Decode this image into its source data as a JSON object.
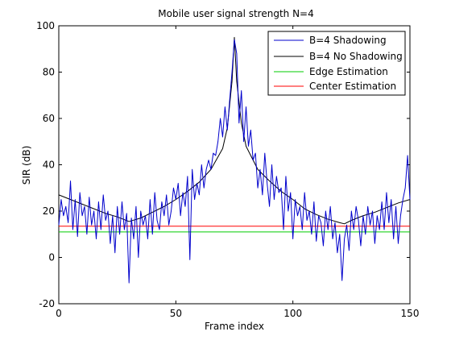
{
  "chart_data": {
    "type": "line",
    "title": "Mobile user signal strength N=4",
    "xlabel": "Frame index",
    "ylabel": "SIR (dB)",
    "xlim": [
      0,
      150
    ],
    "ylim": [
      -20,
      100
    ],
    "xticks": [
      0,
      50,
      100,
      150
    ],
    "yticks": [
      -20,
      0,
      20,
      40,
      60,
      80,
      100
    ],
    "grid": false,
    "legend_position": "top-right",
    "series": [
      {
        "name": "B=4 Shadowing",
        "color": "#0000cc",
        "x": [
          0,
          1,
          2,
          3,
          4,
          5,
          6,
          7,
          8,
          9,
          10,
          11,
          12,
          13,
          14,
          15,
          16,
          17,
          18,
          19,
          20,
          21,
          22,
          23,
          24,
          25,
          26,
          27,
          28,
          29,
          30,
          31,
          32,
          33,
          34,
          35,
          36,
          37,
          38,
          39,
          40,
          41,
          42,
          43,
          44,
          45,
          46,
          47,
          48,
          49,
          50,
          51,
          52,
          53,
          54,
          55,
          56,
          57,
          58,
          59,
          60,
          61,
          62,
          63,
          64,
          65,
          66,
          67,
          68,
          69,
          70,
          71,
          72,
          73,
          74,
          75,
          76,
          77,
          78,
          79,
          80,
          81,
          82,
          83,
          84,
          85,
          86,
          87,
          88,
          89,
          90,
          91,
          92,
          93,
          94,
          95,
          96,
          97,
          98,
          99,
          100,
          101,
          102,
          103,
          104,
          105,
          106,
          107,
          108,
          109,
          110,
          111,
          112,
          113,
          114,
          115,
          116,
          117,
          118,
          119,
          120,
          121,
          122,
          123,
          124,
          125,
          126,
          127,
          128,
          129,
          130,
          131,
          132,
          133,
          134,
          135,
          136,
          137,
          138,
          139,
          140,
          141,
          142,
          143,
          144,
          145,
          146,
          147,
          148,
          149,
          150
        ],
        "values": [
          14,
          25,
          18,
          22,
          15,
          33,
          12,
          25,
          9,
          28,
          18,
          22,
          10,
          26,
          14,
          20,
          8,
          24,
          12,
          27,
          16,
          20,
          6,
          18,
          2,
          22,
          10,
          24,
          12,
          19,
          -11,
          17,
          8,
          22,
          0,
          20,
          14,
          18,
          8,
          25,
          10,
          28,
          16,
          12,
          24,
          18,
          27,
          14,
          20,
          30,
          25,
          32,
          18,
          28,
          22,
          35,
          -1,
          38,
          25,
          32,
          27,
          40,
          30,
          38,
          42,
          38,
          45,
          44,
          50,
          60,
          52,
          65,
          55,
          68,
          80,
          94,
          88,
          58,
          72,
          50,
          65,
          48,
          55,
          42,
          45,
          30,
          38,
          27,
          45,
          32,
          22,
          40,
          25,
          35,
          28,
          30,
          12,
          35,
          20,
          28,
          8,
          25,
          18,
          22,
          12,
          28,
          16,
          20,
          10,
          24,
          7,
          18,
          15,
          5,
          20,
          12,
          22,
          8,
          15,
          2,
          10,
          -10,
          8,
          14,
          3,
          20,
          12,
          22,
          16,
          5,
          18,
          10,
          22,
          14,
          20,
          6,
          18,
          12,
          24,
          12,
          28,
          15,
          25,
          8,
          22,
          6,
          18,
          25,
          30,
          44,
          25
        ]
      },
      {
        "name": "B=4 No Shadowing",
        "color": "#000000",
        "x": [
          0,
          5,
          10,
          15,
          20,
          25,
          30,
          35,
          40,
          45,
          50,
          55,
          60,
          65,
          70,
          72,
          74,
          75,
          76,
          78,
          80,
          85,
          90,
          95,
          100,
          105,
          110,
          115,
          120,
          122,
          125,
          130,
          135,
          140,
          145,
          150
        ],
        "values": [
          27,
          25,
          23,
          21,
          19,
          17.5,
          15.5,
          17,
          19.5,
          22,
          25,
          28.5,
          32.5,
          38,
          47,
          56,
          76,
          95,
          76,
          58,
          48,
          38,
          33,
          28.5,
          25,
          21,
          18.5,
          16.5,
          15,
          14.5,
          16,
          18,
          19.5,
          21.5,
          23.5,
          25
        ]
      },
      {
        "name": "Edge Estimation",
        "color": "#00cc00",
        "x": [
          0,
          150
        ],
        "values": [
          11,
          11
        ]
      },
      {
        "name": "Center Estimation",
        "color": "#ff0000",
        "x": [
          0,
          150
        ],
        "values": [
          13.5,
          13.5
        ]
      }
    ]
  }
}
